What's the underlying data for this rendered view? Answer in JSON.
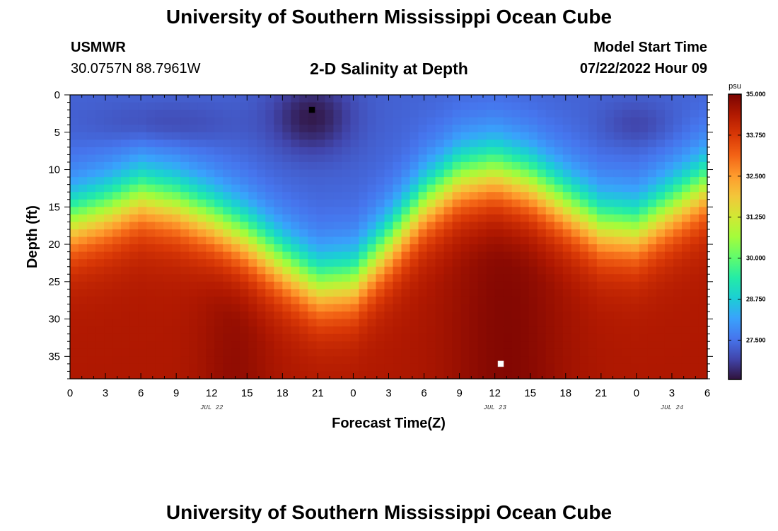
{
  "page": {
    "title_top": "University of Southern Mississippi Ocean Cube",
    "title_bottom": "University of Southern Mississippi Ocean Cube",
    "station": "USMWR",
    "coords": "30.0757N  88.7961W",
    "subtitle": "2-D Salinity at Depth",
    "model_start_label": "Model Start Time",
    "model_start_time": "07/22/2022 Hour 09"
  },
  "chart_data": {
    "type": "heatmap",
    "title": "2-D Salinity at Depth",
    "xlabel": "Forecast Time(Z)",
    "ylabel": "Depth (ft)",
    "x_ticks": [
      "0",
      "3",
      "6",
      "9",
      "12",
      "15",
      "18",
      "21",
      "0",
      "3",
      "6",
      "9",
      "12",
      "15",
      "18",
      "21",
      "0",
      "3",
      "6"
    ],
    "x_range_hours": [
      0,
      54
    ],
    "date_labels": [
      {
        "label": "JUL 22",
        "hour": 12
      },
      {
        "label": "JUL 23",
        "hour": 36
      },
      {
        "label": "JUL 24",
        "hour": 51
      }
    ],
    "y_ticks": [
      "0",
      "5",
      "10",
      "15",
      "20",
      "25",
      "30",
      "35"
    ],
    "y_range_ft": [
      0,
      38
    ],
    "colorbar": {
      "unit": "psu",
      "range": [
        26.3,
        35.0
      ],
      "ticks": [
        "35.000",
        "33.750",
        "32.500",
        "31.250",
        "30.000",
        "28.750",
        "27.500"
      ],
      "colors": [
        "#30123b",
        "#4145ab",
        "#4675ed",
        "#39a2fc",
        "#1bcfd4",
        "#24eca6",
        "#61fc6c",
        "#a4fc3b",
        "#d1e834",
        "#f3c63a",
        "#fe9b2d",
        "#f36315",
        "#d93806",
        "#b11901",
        "#7a0402"
      ]
    },
    "profile_model": {
      "halocline_depth_ft": [
        [
          0,
          17
        ],
        [
          3,
          15.5
        ],
        [
          6,
          13.5
        ],
        [
          9,
          14.5
        ],
        [
          12,
          16.5
        ],
        [
          15,
          19
        ],
        [
          18,
          22.5
        ],
        [
          21,
          25.5
        ],
        [
          24,
          25
        ],
        [
          27,
          20
        ],
        [
          30,
          14.5
        ],
        [
          33,
          11
        ],
        [
          36,
          10
        ],
        [
          39,
          11.5
        ],
        [
          42,
          14.5
        ],
        [
          45,
          17.5
        ],
        [
          48,
          18
        ],
        [
          51,
          15
        ],
        [
          54,
          12
        ]
      ],
      "surface_min_psu": 26.8,
      "bottom_max_psu": 34.9
    },
    "markers": [
      {
        "name": "min",
        "hour": 20.5,
        "depth_ft": 2,
        "color": "#000000"
      },
      {
        "name": "max",
        "hour": 36.5,
        "depth_ft": 36,
        "color": "#ffffff"
      }
    ]
  }
}
